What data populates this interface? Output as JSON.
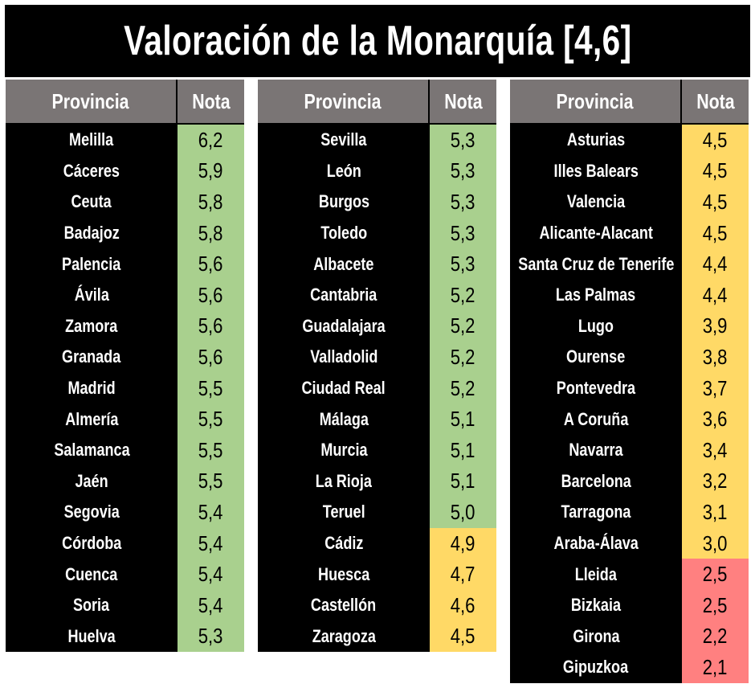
{
  "title": "Valoración de la Monarquía [4,6]",
  "headers": {
    "province": "Provincia",
    "score": "Nota"
  },
  "colors": {
    "green": "#a9d08e",
    "yellow": "#ffd966",
    "red": "#ff8080",
    "header": "#7a7575"
  },
  "columns": [
    [
      {
        "p": "Melilla",
        "n": "6,2",
        "c": "green"
      },
      {
        "p": "Cáceres",
        "n": "5,9",
        "c": "green"
      },
      {
        "p": "Ceuta",
        "n": "5,8",
        "c": "green"
      },
      {
        "p": "Badajoz",
        "n": "5,8",
        "c": "green"
      },
      {
        "p": "Palencia",
        "n": "5,6",
        "c": "green"
      },
      {
        "p": "Ávila",
        "n": "5,6",
        "c": "green"
      },
      {
        "p": "Zamora",
        "n": "5,6",
        "c": "green"
      },
      {
        "p": "Granada",
        "n": "5,6",
        "c": "green"
      },
      {
        "p": "Madrid",
        "n": "5,5",
        "c": "green"
      },
      {
        "p": "Almería",
        "n": "5,5",
        "c": "green"
      },
      {
        "p": "Salamanca",
        "n": "5,5",
        "c": "green"
      },
      {
        "p": "Jaén",
        "n": "5,5",
        "c": "green"
      },
      {
        "p": "Segovia",
        "n": "5,4",
        "c": "green"
      },
      {
        "p": "Córdoba",
        "n": "5,4",
        "c": "green"
      },
      {
        "p": "Cuenca",
        "n": "5,4",
        "c": "green"
      },
      {
        "p": "Soria",
        "n": "5,4",
        "c": "green"
      },
      {
        "p": "Huelva",
        "n": "5,3",
        "c": "green"
      }
    ],
    [
      {
        "p": "Sevilla",
        "n": "5,3",
        "c": "green"
      },
      {
        "p": "León",
        "n": "5,3",
        "c": "green"
      },
      {
        "p": "Burgos",
        "n": "5,3",
        "c": "green"
      },
      {
        "p": "Toledo",
        "n": "5,3",
        "c": "green"
      },
      {
        "p": "Albacete",
        "n": "5,3",
        "c": "green"
      },
      {
        "p": "Cantabria",
        "n": "5,2",
        "c": "green"
      },
      {
        "p": "Guadalajara",
        "n": "5,2",
        "c": "green"
      },
      {
        "p": "Valladolid",
        "n": "5,2",
        "c": "green"
      },
      {
        "p": "Ciudad Real",
        "n": "5,2",
        "c": "green"
      },
      {
        "p": "Málaga",
        "n": "5,1",
        "c": "green"
      },
      {
        "p": "Murcia",
        "n": "5,1",
        "c": "green"
      },
      {
        "p": "La Rioja",
        "n": "5,1",
        "c": "green"
      },
      {
        "p": "Teruel",
        "n": "5,0",
        "c": "green"
      },
      {
        "p": "Cádiz",
        "n": "4,9",
        "c": "yellow"
      },
      {
        "p": "Huesca",
        "n": "4,7",
        "c": "yellow"
      },
      {
        "p": "Castellón",
        "n": "4,6",
        "c": "yellow"
      },
      {
        "p": "Zaragoza",
        "n": "4,5",
        "c": "yellow"
      }
    ],
    [
      {
        "p": "Asturias",
        "n": "4,5",
        "c": "yellow"
      },
      {
        "p": "Illes Balears",
        "n": "4,5",
        "c": "yellow"
      },
      {
        "p": "Valencia",
        "n": "4,5",
        "c": "yellow"
      },
      {
        "p": "Alicante-Alacant",
        "n": "4,5",
        "c": "yellow"
      },
      {
        "p": "Santa Cruz de Tenerife",
        "n": "4,4",
        "c": "yellow"
      },
      {
        "p": "Las Palmas",
        "n": "4,4",
        "c": "yellow"
      },
      {
        "p": "Lugo",
        "n": "3,9",
        "c": "yellow"
      },
      {
        "p": "Ourense",
        "n": "3,8",
        "c": "yellow"
      },
      {
        "p": "Pontevedra",
        "n": "3,7",
        "c": "yellow"
      },
      {
        "p": "A Coruña",
        "n": "3,6",
        "c": "yellow"
      },
      {
        "p": "Navarra",
        "n": "3,4",
        "c": "yellow"
      },
      {
        "p": "Barcelona",
        "n": "3,2",
        "c": "yellow"
      },
      {
        "p": "Tarragona",
        "n": "3,1",
        "c": "yellow"
      },
      {
        "p": "Araba-Álava",
        "n": "3,0",
        "c": "yellow"
      },
      {
        "p": "Lleida",
        "n": "2,5",
        "c": "red"
      },
      {
        "p": "Bizkaia",
        "n": "2,5",
        "c": "red"
      },
      {
        "p": "Girona",
        "n": "2,2",
        "c": "red"
      },
      {
        "p": "Gipuzkoa",
        "n": "2,1",
        "c": "red"
      }
    ]
  ]
}
